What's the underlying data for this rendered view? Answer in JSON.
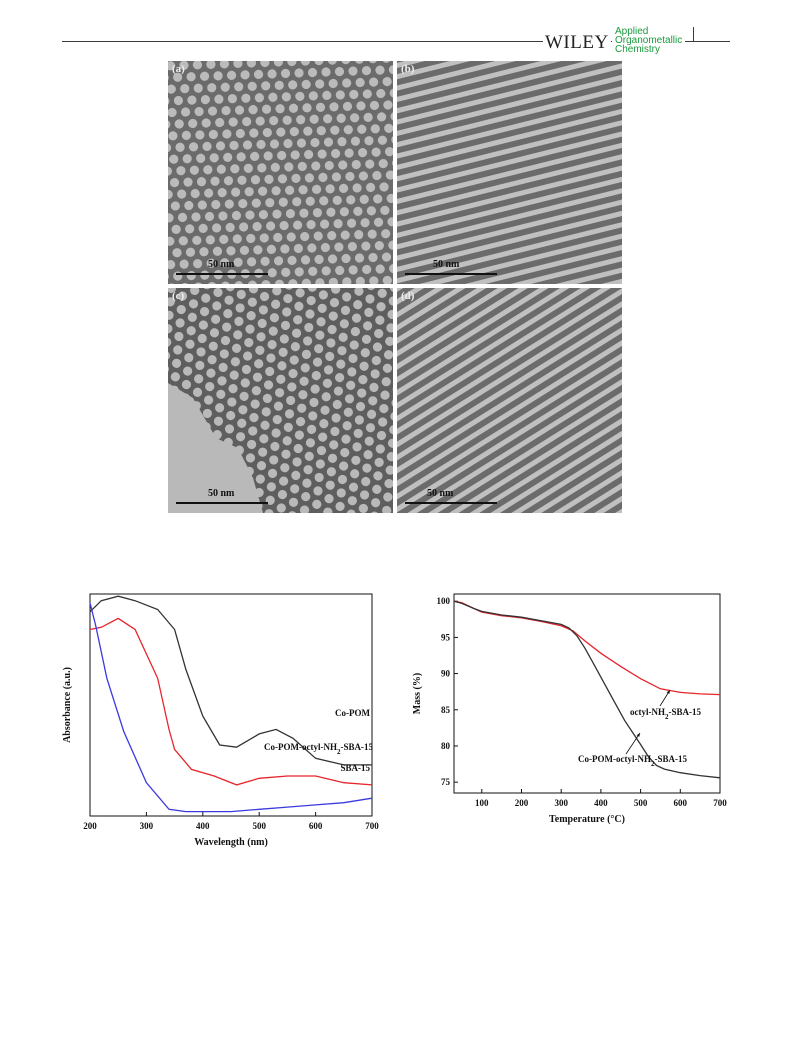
{
  "header": {
    "publisher": "WILEY",
    "journal_lines": [
      "Applied",
      "Organometallic",
      "Chemistry"
    ]
  },
  "tem_panels": [
    {
      "label": "(a)",
      "scale_text": "50 nm",
      "pattern": "hexagonal pores"
    },
    {
      "label": "(b)",
      "scale_text": "50 nm",
      "pattern": "parallel channels"
    },
    {
      "label": "(c)",
      "scale_text": "50 nm",
      "pattern": "hexagonal pores"
    },
    {
      "label": "(d)",
      "scale_text": "50 nm",
      "pattern": "parallel channels"
    }
  ],
  "chart_data": [
    {
      "type": "line",
      "xlabel": "Wavelength (nm)",
      "ylabel": "Absorbance (a.u.)",
      "xlim": [
        200,
        700
      ],
      "ylim": [
        0,
        1
      ],
      "xticks": [
        200,
        300,
        400,
        500,
        600,
        700
      ],
      "yticks_shown": false,
      "series": [
        {
          "name": "Co-POM",
          "color": "#333333",
          "x": [
            200,
            220,
            250,
            280,
            320,
            350,
            370,
            400,
            430,
            460,
            500,
            530,
            560,
            600,
            650,
            700
          ],
          "y": [
            0.92,
            0.97,
            0.99,
            0.97,
            0.93,
            0.84,
            0.66,
            0.45,
            0.32,
            0.31,
            0.37,
            0.39,
            0.35,
            0.26,
            0.23,
            0.23
          ]
        },
        {
          "name": "Co-POM-octyl-NH2-SBA-15",
          "color": "#e8242c",
          "x": [
            200,
            220,
            250,
            280,
            320,
            340,
            350,
            380,
            420,
            460,
            500,
            550,
            600,
            650,
            700
          ],
          "y": [
            0.84,
            0.85,
            0.89,
            0.84,
            0.62,
            0.39,
            0.3,
            0.21,
            0.18,
            0.14,
            0.17,
            0.18,
            0.18,
            0.15,
            0.14
          ]
        },
        {
          "name": "SBA-15",
          "color": "#3a3ae0",
          "x": [
            200,
            210,
            230,
            260,
            300,
            340,
            370,
            400,
            450,
            500,
            550,
            600,
            650,
            700
          ],
          "y": [
            0.96,
            0.86,
            0.62,
            0.38,
            0.15,
            0.03,
            0.02,
            0.02,
            0.02,
            0.03,
            0.04,
            0.05,
            0.06,
            0.08
          ]
        }
      ],
      "annotations": [
        "Co-POM",
        "Co-POM-octyl-NH2-SBA-15",
        "SBA-15"
      ]
    },
    {
      "type": "line",
      "xlabel": "Temperature (°C)",
      "ylabel": "Mass (%)",
      "xlim": [
        30,
        700
      ],
      "ylim": [
        73.5,
        101
      ],
      "xticks": [
        100,
        200,
        300,
        400,
        500,
        600,
        700
      ],
      "yticks": [
        75,
        80,
        85,
        90,
        95,
        100
      ],
      "series": [
        {
          "name": "octyl-NH2-SBA-15",
          "color": "#e8242c",
          "x": [
            30,
            50,
            80,
            100,
            150,
            200,
            250,
            300,
            330,
            360,
            400,
            450,
            500,
            550,
            600,
            650,
            700
          ],
          "y": [
            100,
            99.8,
            99.0,
            98.5,
            98.0,
            97.7,
            97.2,
            96.6,
            95.9,
            94.5,
            92.8,
            91.0,
            89.3,
            87.9,
            87.4,
            87.2,
            87.1
          ]
        },
        {
          "name": "Co-POM-octyl-NH2-SBA-15",
          "color": "#333333",
          "x": [
            30,
            50,
            80,
            100,
            150,
            200,
            250,
            300,
            320,
            340,
            360,
            380,
            400,
            430,
            460,
            500,
            520,
            540,
            560,
            600,
            650,
            700
          ],
          "y": [
            100,
            99.7,
            99.0,
            98.6,
            98.1,
            97.8,
            97.3,
            96.8,
            96.3,
            95.2,
            93.5,
            91.5,
            89.5,
            86.5,
            83.5,
            80.2,
            78.5,
            77.3,
            76.8,
            76.3,
            75.9,
            75.6
          ]
        }
      ],
      "annotations": [
        "octyl-NH2-SBA-15",
        "Co-POM-octyl-NH2-SBA-15"
      ]
    }
  ]
}
